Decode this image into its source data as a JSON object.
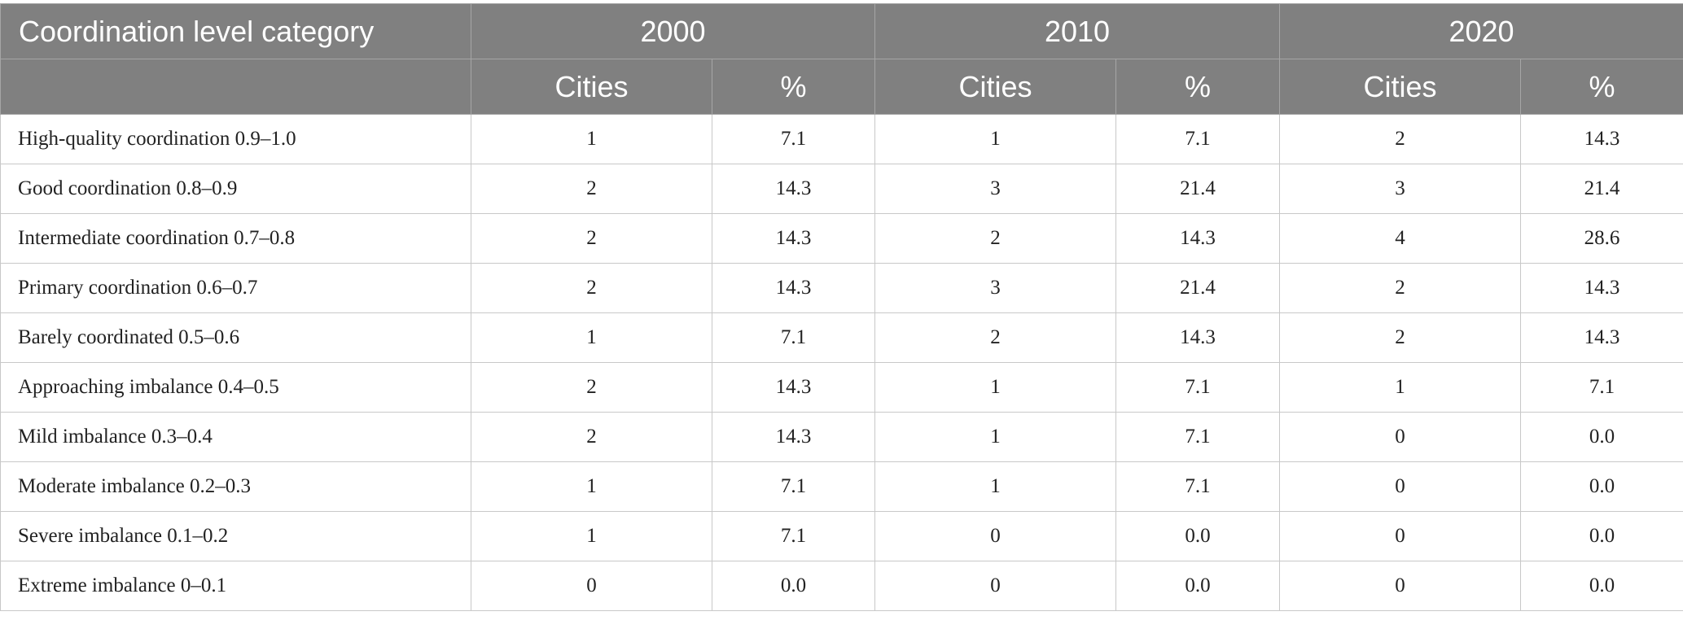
{
  "table": {
    "header": {
      "category_label": "Coordination level category",
      "years": [
        "2000",
        "2010",
        "2020"
      ],
      "sub_cities": "Cities",
      "sub_pct": "%"
    },
    "rows": [
      {
        "category": "High-quality coordination 0.9–1.0",
        "c2000": "1",
        "p2000": "7.1",
        "c2010": "1",
        "p2010": "7.1",
        "c2020": "2",
        "p2020": "14.3"
      },
      {
        "category": "Good coordination 0.8–0.9",
        "c2000": "2",
        "p2000": "14.3",
        "c2010": "3",
        "p2010": "21.4",
        "c2020": "3",
        "p2020": "21.4"
      },
      {
        "category": "Intermediate coordination 0.7–0.8",
        "c2000": "2",
        "p2000": "14.3",
        "c2010": "2",
        "p2010": "14.3",
        "c2020": "4",
        "p2020": "28.6"
      },
      {
        "category": "Primary coordination 0.6–0.7",
        "c2000": "2",
        "p2000": "14.3",
        "c2010": "3",
        "p2010": "21.4",
        "c2020": "2",
        "p2020": "14.3"
      },
      {
        "category": "Barely coordinated 0.5–0.6",
        "c2000": "1",
        "p2000": "7.1",
        "c2010": "2",
        "p2010": "14.3",
        "c2020": "2",
        "p2020": "14.3"
      },
      {
        "category": "Approaching imbalance 0.4–0.5",
        "c2000": "2",
        "p2000": "14.3",
        "c2010": "1",
        "p2010": "7.1",
        "c2020": "1",
        "p2020": "7.1"
      },
      {
        "category": "Mild imbalance 0.3–0.4",
        "c2000": "2",
        "p2000": "14.3",
        "c2010": "1",
        "p2010": "7.1",
        "c2020": "0",
        "p2020": "0.0"
      },
      {
        "category": "Moderate imbalance 0.2–0.3",
        "c2000": "1",
        "p2000": "7.1",
        "c2010": "1",
        "p2010": "7.1",
        "c2020": "0",
        "p2020": "0.0"
      },
      {
        "category": "Severe imbalance 0.1–0.2",
        "c2000": "1",
        "p2000": "7.1",
        "c2010": "0",
        "p2010": "0.0",
        "c2020": "0",
        "p2020": "0.0"
      },
      {
        "category": "Extreme imbalance 0–0.1",
        "c2000": "0",
        "p2000": "0.0",
        "c2010": "0",
        "p2010": "0.0",
        "c2020": "0",
        "p2020": "0.0"
      }
    ]
  },
  "colors": {
    "header_bg": "#808080",
    "header_text": "#ffffff",
    "grid": "#c8c8c8"
  }
}
